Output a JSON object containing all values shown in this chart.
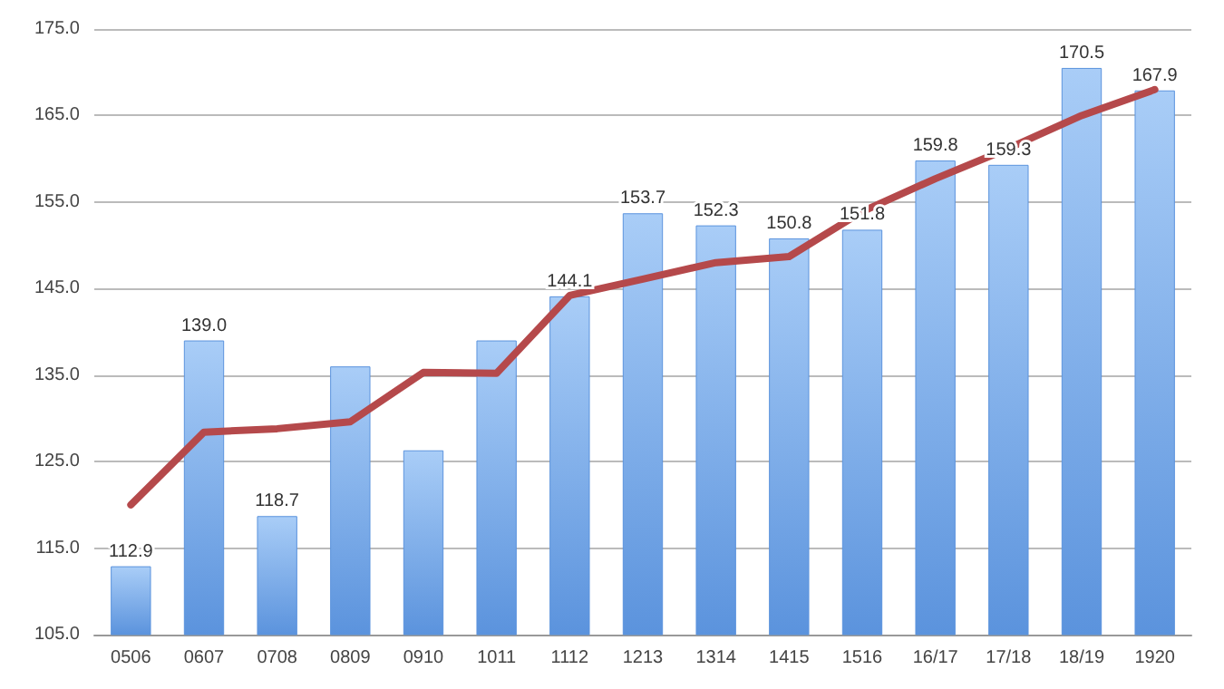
{
  "chart_data": {
    "type": "bar",
    "categories": [
      "0506",
      "0607",
      "0708",
      "0809",
      "0910",
      "1011",
      "1112",
      "1213",
      "1314",
      "1415",
      "1516",
      "16/17",
      "17/18",
      "18/19",
      "1920"
    ],
    "series": [
      {
        "color": "#5b93dd",
        "values": [
          112.9,
          139.0,
          118.7,
          136.0,
          126.3,
          139.0,
          144.1,
          153.7,
          152.3,
          150.8,
          151.8,
          159.8,
          159.3,
          170.5,
          167.9
        ],
        "value_labels": [
          "112.9",
          "139.0",
          "118.7",
          null,
          null,
          null,
          "144.1",
          "153.7",
          "152.3",
          "150.8",
          "151.8",
          "159.8",
          "159.3",
          "170.5",
          "167.9"
        ]
      },
      {
        "type": "line",
        "color": "#b5494b",
        "values": [
          120.0,
          128.4,
          128.8,
          129.6,
          135.3,
          135.2,
          144.2,
          146.1,
          148.0,
          148.7,
          153.9,
          157.7,
          161.2,
          165.0,
          168.0
        ]
      }
    ],
    "ylim": [
      105,
      175
    ],
    "yticks": [
      {
        "value": 105,
        "label": "105.0"
      },
      {
        "value": 115,
        "label": "115.0"
      },
      {
        "value": 125,
        "label": "125.0"
      },
      {
        "value": 135,
        "label": "135.0"
      },
      {
        "value": 145,
        "label": "145.0"
      },
      {
        "value": 155,
        "label": "155.0"
      },
      {
        "value": 165,
        "label": "165.0"
      },
      {
        "value": 175,
        "label": "175.0"
      }
    ],
    "grid": "y",
    "marker": "none",
    "line_style": "solid"
  }
}
